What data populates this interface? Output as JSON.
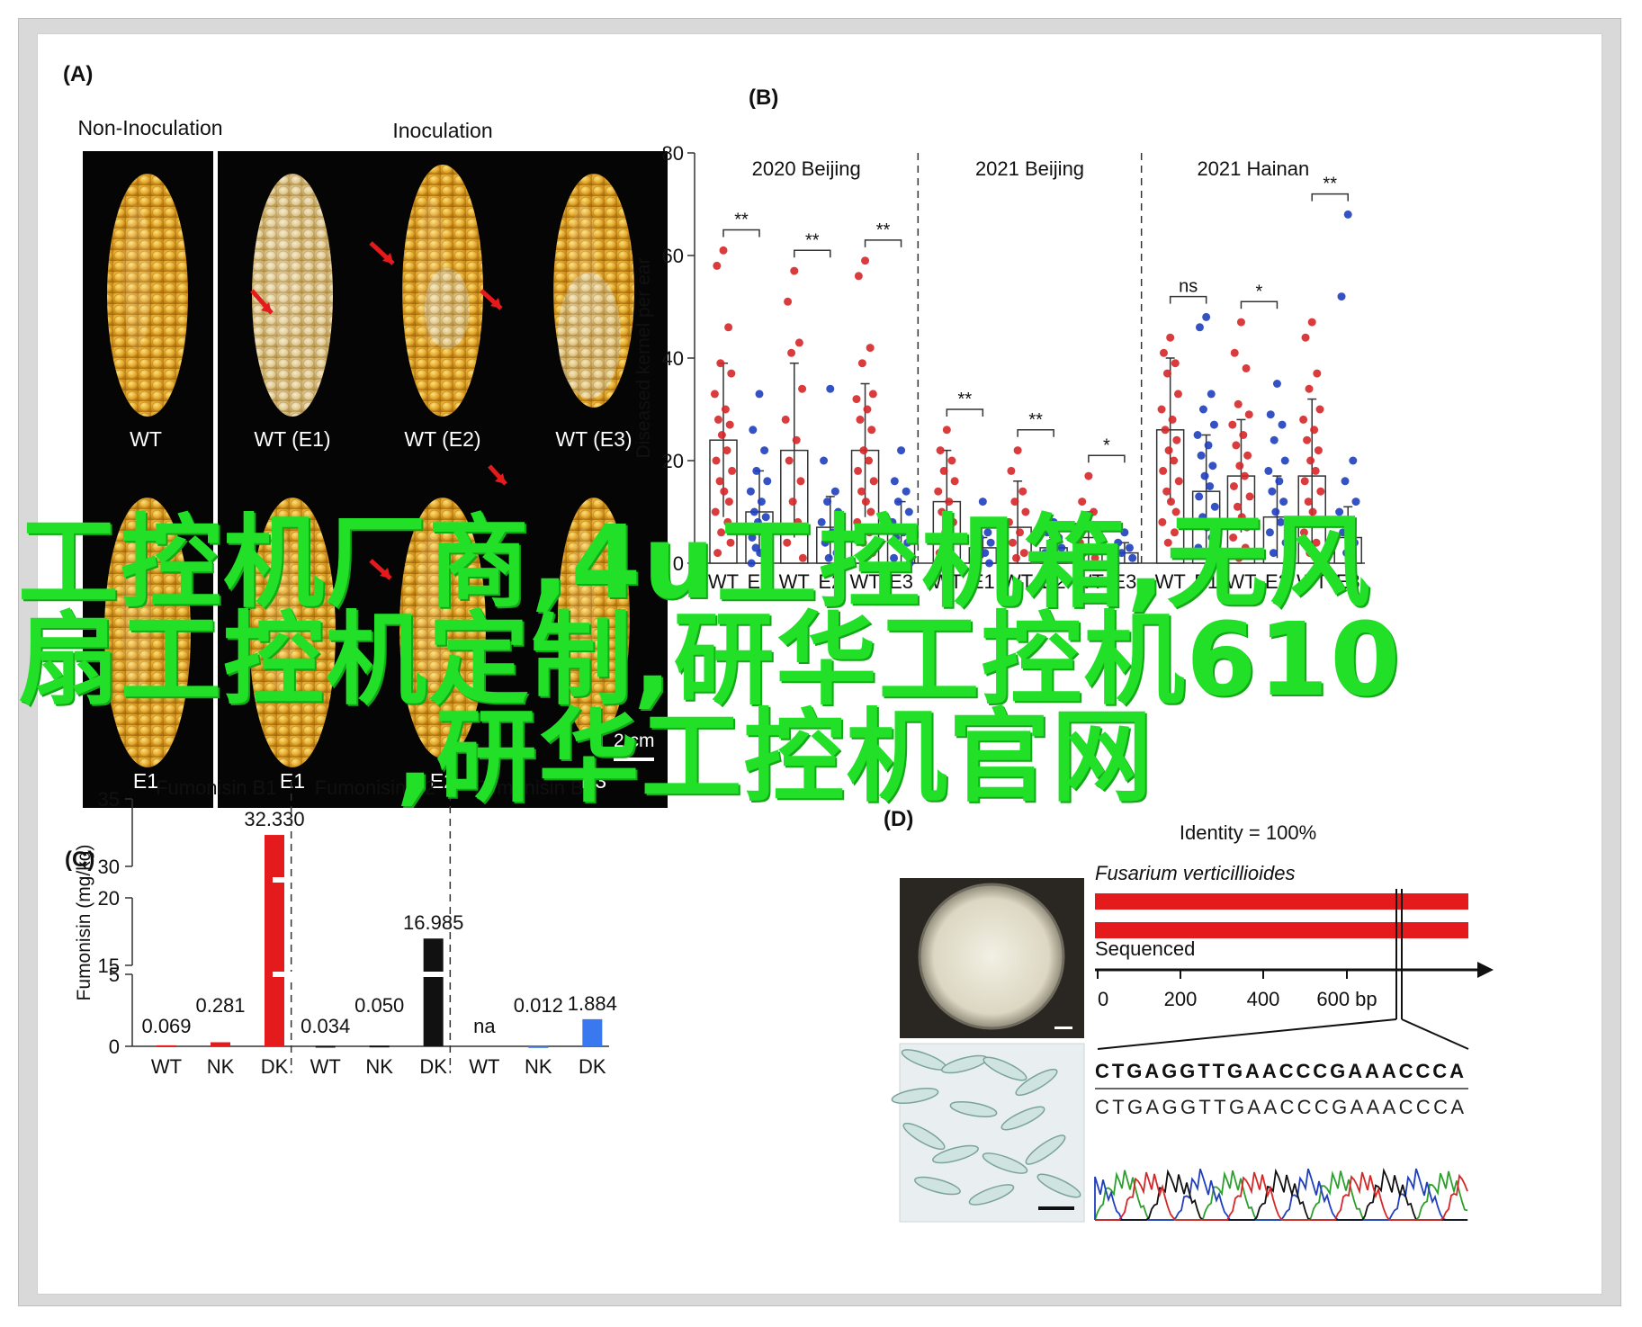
{
  "panels": {
    "A": {
      "label": "(A)",
      "group_left": "Non-Inoculation",
      "group_right": "Inoculation",
      "top_row": [
        "WT",
        "WT (E1)",
        "WT (E2)",
        "WT (E3)"
      ],
      "bottom_row": [
        "E1",
        "E1",
        "E2",
        "E3"
      ],
      "scale_bar": "2 cm"
    },
    "B": {
      "label": "(B)",
      "facets": [
        "2020 Beijing",
        "2021 Beijing",
        "2021 Hainan"
      ],
      "categories": [
        "WT",
        "E1",
        "WT",
        "E2",
        "WT",
        "E3"
      ],
      "significance": [
        [
          "**",
          "**",
          "**"
        ],
        [
          "**",
          "**",
          "*"
        ],
        [
          "ns",
          "*",
          "**"
        ]
      ]
    },
    "C": {
      "label": "(C)",
      "facets": [
        "Fumonisin B1",
        "Fumonisin B2",
        "Fumonisin B3"
      ],
      "categories": [
        "WT",
        "NK",
        "DK"
      ]
    },
    "D": {
      "label": "(D)",
      "identity": "Identity = 100%",
      "organism": "Fusarium verticillioides",
      "sequenced_label": "Sequenced",
      "axis_ticks": [
        "0",
        "200",
        "400",
        "600 bp"
      ],
      "seq_top": "CTGAGGTTGAACCCGAAACCCA",
      "seq_bottom": "CTGAGGTTGAACCCGAAACCCA"
    }
  },
  "chart_data": [
    {
      "type": "bar",
      "panel": "B",
      "ylabel": "Diseased kernel per ear",
      "ylim": [
        0,
        80
      ],
      "yticks": [
        0,
        20,
        40,
        60,
        80
      ],
      "groups": [
        {
          "facet": "2020 Beijing",
          "pairs": [
            {
              "wt": 24,
              "wt_err": 15,
              "mut": 10,
              "mut_err": 8,
              "wt_points": [
                61,
                58,
                46,
                39,
                37,
                33,
                30,
                28,
                27,
                25,
                22,
                20,
                18,
                16,
                14,
                12,
                10,
                8,
                6,
                4,
                2
              ],
              "mut_points": [
                33,
                26,
                22,
                18,
                16,
                14,
                12,
                10,
                9,
                8,
                6,
                5,
                4,
                3,
                2,
                1,
                0
              ]
            },
            {
              "wt": 22,
              "wt_err": 17,
              "mut": 7,
              "mut_err": 6,
              "wt_points": [
                57,
                51,
                43,
                41,
                34,
                28,
                24,
                20,
                16,
                12,
                8,
                4,
                1
              ],
              "mut_points": [
                34,
                20,
                14,
                12,
                10,
                8,
                6,
                4,
                2,
                1
              ]
            },
            {
              "wt": 22,
              "wt_err": 13,
              "mut": 6,
              "mut_err": 6,
              "wt_points": [
                59,
                56,
                42,
                39,
                33,
                32,
                30,
                28,
                26,
                22,
                20,
                18,
                16,
                14,
                12,
                10,
                8,
                6,
                4,
                2
              ],
              "mut_points": [
                22,
                16,
                14,
                12,
                10,
                8,
                6,
                5,
                4,
                3,
                2,
                1,
                0
              ]
            }
          ]
        },
        {
          "facet": "2021 Beijing",
          "pairs": [
            {
              "wt": 12,
              "wt_err": 10,
              "mut": 3,
              "mut_err": 2,
              "wt_points": [
                26,
                22,
                20,
                18,
                16,
                14,
                12,
                10,
                8,
                6,
                4,
                2
              ],
              "mut_points": [
                12,
                8,
                6,
                5,
                4,
                3,
                2,
                1,
                0
              ]
            },
            {
              "wt": 7,
              "wt_err": 9,
              "mut": 3,
              "mut_err": 2,
              "wt_points": [
                22,
                18,
                14,
                12,
                10,
                8,
                6,
                4,
                2,
                1
              ],
              "mut_points": [
                8,
                6,
                5,
                4,
                3,
                2,
                1,
                0
              ]
            },
            {
              "wt": 5,
              "wt_err": 5,
              "mut": 2,
              "mut_err": 2,
              "wt_points": [
                17,
                12,
                10,
                8,
                6,
                4,
                3,
                2,
                1
              ],
              "mut_points": [
                6,
                4,
                3,
                2,
                1,
                0
              ]
            }
          ]
        },
        {
          "facet": "2021 Hainan",
          "pairs": [
            {
              "wt": 26,
              "wt_err": 14,
              "mut": 14,
              "mut_err": 11,
              "wt_points": [
                44,
                41,
                39,
                37,
                33,
                30,
                28,
                26,
                24,
                22,
                20,
                18,
                16,
                14,
                12,
                10,
                8,
                6,
                4,
                2
              ],
              "mut_points": [
                48,
                46,
                33,
                30,
                27,
                25,
                23,
                21,
                19,
                17,
                15,
                13,
                11,
                9,
                7,
                5,
                3,
                1
              ]
            },
            {
              "wt": 17,
              "wt_err": 11,
              "mut": 9,
              "mut_err": 8,
              "wt_points": [
                47,
                41,
                38,
                31,
                29,
                27,
                25,
                23,
                21,
                19,
                17,
                15,
                13,
                11,
                9,
                7,
                5,
                3,
                1
              ],
              "mut_points": [
                35,
                29,
                27,
                24,
                20,
                18,
                16,
                14,
                12,
                10,
                8,
                6,
                4,
                2
              ]
            },
            {
              "wt": 17,
              "wt_err": 15,
              "mut": 5,
              "mut_err": 6,
              "wt_points": [
                47,
                44,
                37,
                34,
                30,
                28,
                26,
                24,
                22,
                20,
                18,
                16,
                14,
                12,
                10,
                8,
                6,
                4,
                2
              ],
              "mut_points": [
                68,
                52,
                20,
                16,
                12,
                10,
                8,
                6,
                4,
                2,
                1
              ]
            }
          ]
        }
      ]
    },
    {
      "type": "bar",
      "panel": "C",
      "ylabel": "Fumonisin (mg/kg)",
      "yticks": [
        "0",
        "5",
        "15",
        "20",
        "30",
        "35"
      ],
      "groups": [
        {
          "facet": "Fumonisin B1",
          "values": [
            0.069,
            0.281,
            32.33
          ],
          "labels": [
            "0.069",
            "0.281",
            "32.330"
          ]
        },
        {
          "facet": "Fumonisin B2",
          "values": [
            0.034,
            0.05,
            16.985
          ],
          "labels": [
            "0.034",
            "0.050",
            "16.985"
          ]
        },
        {
          "facet": "Fumonisin B3",
          "values": [
            null,
            0.012,
            1.884
          ],
          "labels": [
            "na",
            "0.012",
            "1.884"
          ]
        }
      ],
      "colors": [
        "#e41a1c",
        "#111111",
        "#3a78f0"
      ]
    }
  ],
  "overlay": {
    "line1": "工控机厂商,4u工控机箱,无风",
    "line2": "扇工控机定制,研华工控机610",
    "line3": ",研华工控机官网",
    "color": "#22e027"
  }
}
